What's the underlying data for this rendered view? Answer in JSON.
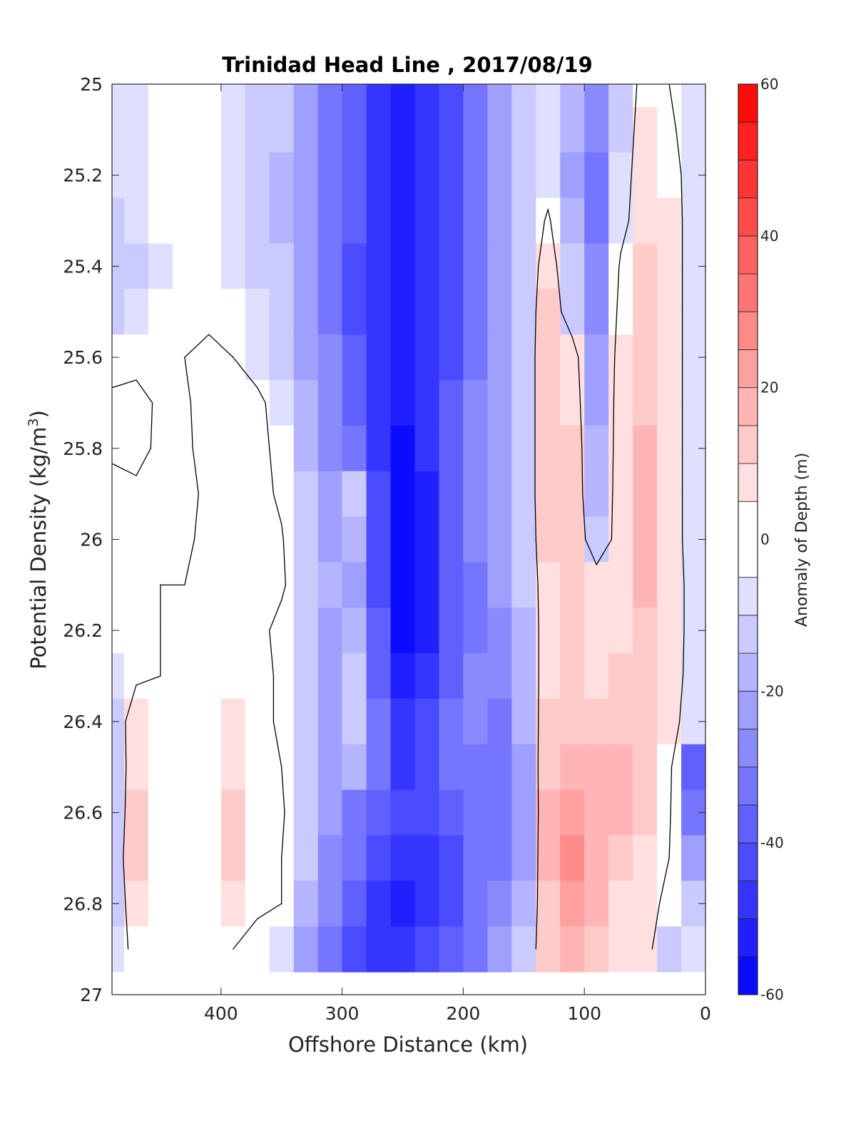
{
  "chart_data": {
    "type": "heatmap",
    "title": "Trinidad Head Line , 2017/08/19",
    "xlabel": "Offshore Distance (km)",
    "ylabel_main": "Potential Density (kg/m",
    "ylabel_sup": "3",
    "ylabel_close": ")",
    "colorbar_label": "Anomaly of Depth (m)",
    "xlim": [
      490,
      0
    ],
    "ylim": [
      25,
      27
    ],
    "x_ticks": [
      400,
      300,
      200,
      100,
      0
    ],
    "y_ticks": [
      25,
      25.2,
      25.4,
      25.6,
      25.8,
      26,
      26.2,
      26.4,
      26.6,
      26.8,
      27
    ],
    "y_tick_labels": [
      "25",
      "25.2",
      "25.4",
      "25.6",
      "25.8",
      "26",
      "26.2",
      "26.4",
      "26.6",
      "26.8",
      "27"
    ],
    "colorbar_range": [
      -60,
      60
    ],
    "colorbar_ticks": [
      60,
      40,
      20,
      0,
      -20,
      -40,
      -60
    ],
    "colorbar_levels": [
      -60,
      -55,
      -50,
      -45,
      -40,
      -35,
      -30,
      -25,
      -20,
      -15,
      -10,
      -5,
      5,
      10,
      15,
      20,
      25,
      30,
      35,
      40,
      45,
      50,
      55,
      60
    ],
    "colors": {
      "negative": "#0000ff",
      "positive": "#ff0000",
      "zero": "#ffffff",
      "contour": "#000000"
    },
    "x": [
      490,
      470,
      450,
      430,
      410,
      390,
      370,
      350,
      330,
      310,
      290,
      270,
      250,
      230,
      210,
      190,
      170,
      150,
      130,
      110,
      90,
      70,
      50,
      30,
      10
    ],
    "y": [
      25,
      25.1,
      25.2,
      25.3,
      25.4,
      25.5,
      25.6,
      25.7,
      25.8,
      25.9,
      26,
      26.1,
      26.2,
      26.3,
      26.4,
      26.5,
      26.6,
      26.7,
      26.8,
      26.9
    ],
    "z": [
      [
        -8,
        -6,
        -4,
        -2,
        -3,
        -8,
        -10,
        -14,
        -20,
        -30,
        -38,
        -45,
        -50,
        -48,
        -40,
        -30,
        -20,
        -12,
        -8,
        -15,
        -25,
        -10,
        5,
        0,
        -5
      ],
      [
        -8,
        -6,
        -4,
        -2,
        -3,
        -8,
        -10,
        -14,
        -20,
        -30,
        -38,
        -45,
        -50,
        -48,
        -40,
        -30,
        -20,
        -12,
        -8,
        -18,
        -28,
        -10,
        8,
        2,
        -5
      ],
      [
        -8,
        -6,
        -4,
        -2,
        -3,
        -8,
        -12,
        -15,
        -22,
        -30,
        -38,
        -45,
        -50,
        -48,
        -40,
        -30,
        -20,
        -12,
        -6,
        -20,
        -30,
        -8,
        10,
        5,
        -5
      ],
      [
        -10,
        -8,
        -4,
        -2,
        -3,
        -8,
        -12,
        -15,
        -22,
        -30,
        -38,
        -45,
        -52,
        -48,
        -40,
        -30,
        -20,
        -12,
        2,
        -18,
        -30,
        -5,
        10,
        6,
        -5
      ],
      [
        -14,
        -12,
        -6,
        -2,
        -2,
        -6,
        -10,
        -14,
        -22,
        -30,
        -40,
        -47,
        -52,
        -48,
        -40,
        -30,
        -20,
        -12,
        8,
        -14,
        -28,
        2,
        12,
        6,
        -5
      ],
      [
        -12,
        -8,
        -4,
        -2,
        -2,
        -4,
        -8,
        -12,
        -22,
        -30,
        -40,
        -47,
        -52,
        -48,
        -40,
        -30,
        -22,
        -12,
        12,
        -10,
        -26,
        5,
        14,
        6,
        -5
      ],
      [
        -4,
        -4,
        -2,
        0,
        2,
        0,
        -6,
        -10,
        -20,
        -28,
        -38,
        -47,
        -54,
        -48,
        -40,
        -30,
        -22,
        -12,
        14,
        8,
        -24,
        8,
        14,
        6,
        -5
      ],
      [
        2,
        4,
        -2,
        -1,
        3,
        4,
        3,
        -6,
        -18,
        -28,
        -36,
        -45,
        -54,
        -48,
        -38,
        -28,
        -22,
        -12,
        14,
        10,
        -20,
        8,
        14,
        6,
        -5
      ],
      [
        2,
        3,
        -2,
        -2,
        4,
        5,
        4,
        -4,
        -18,
        -26,
        -34,
        -45,
        -55,
        -48,
        -38,
        -28,
        -22,
        -12,
        14,
        12,
        -18,
        8,
        16,
        6,
        -5
      ],
      [
        -4,
        -2,
        -2,
        -4,
        3,
        5,
        4,
        -2,
        -14,
        -22,
        -14,
        -42,
        -55,
        -50,
        -38,
        -28,
        -22,
        -12,
        14,
        12,
        -16,
        8,
        16,
        6,
        -5
      ],
      [
        -4,
        -2,
        -2,
        -2,
        3,
        5,
        4,
        1,
        -12,
        -20,
        -18,
        -40,
        -55,
        -50,
        -38,
        -28,
        -22,
        -12,
        12,
        12,
        -10,
        6,
        16,
        6,
        -5
      ],
      [
        -3,
        -2,
        0,
        0,
        3,
        5,
        4,
        2,
        -10,
        -18,
        -20,
        -40,
        -56,
        -50,
        -38,
        -30,
        -24,
        -14,
        10,
        12,
        8,
        6,
        16,
        8,
        -5
      ],
      [
        -4,
        -2,
        0,
        0,
        3,
        5,
        4,
        -4,
        -14,
        -20,
        -16,
        -38,
        -57,
        -50,
        -38,
        -30,
        -26,
        -16,
        10,
        12,
        8,
        10,
        14,
        8,
        -5
      ],
      [
        -8,
        -2,
        0,
        0,
        3,
        5,
        4,
        -2,
        -12,
        -24,
        -14,
        -36,
        -52,
        -46,
        -36,
        -28,
        -28,
        -16,
        10,
        12,
        10,
        12,
        12,
        8,
        -6
      ],
      [
        -10,
        8,
        2,
        0,
        4,
        8,
        4,
        -2,
        -12,
        -24,
        -10,
        -30,
        -48,
        -44,
        -34,
        -26,
        -32,
        -18,
        12,
        14,
        12,
        12,
        12,
        6,
        -8
      ],
      [
        -14,
        10,
        2,
        2,
        4,
        10,
        4,
        0,
        -10,
        -20,
        -16,
        -34,
        -46,
        -42,
        -34,
        -30,
        -32,
        -20,
        14,
        20,
        16,
        18,
        14,
        4,
        -35
      ],
      [
        -14,
        12,
        2,
        0,
        2,
        12,
        4,
        2,
        -14,
        -24,
        -30,
        -36,
        -44,
        -44,
        -38,
        -32,
        -32,
        -24,
        16,
        22,
        18,
        16,
        14,
        2,
        -30
      ],
      [
        -12,
        14,
        3,
        0,
        2,
        12,
        2,
        0,
        -14,
        -26,
        -34,
        -42,
        -46,
        -48,
        -40,
        -34,
        -30,
        -22,
        16,
        26,
        18,
        12,
        10,
        0,
        -20
      ],
      [
        -10,
        8,
        2,
        0,
        2,
        6,
        2,
        0,
        -16,
        -28,
        -38,
        -48,
        -50,
        -46,
        -40,
        -34,
        -28,
        -18,
        14,
        22,
        16,
        10,
        6,
        -4,
        -10
      ],
      [
        -8,
        4,
        0,
        0,
        0,
        0,
        -4,
        -8,
        -20,
        -30,
        -40,
        -46,
        -48,
        -44,
        -38,
        -30,
        -22,
        -12,
        12,
        16,
        12,
        8,
        6,
        -14,
        -8
      ]
    ]
  }
}
